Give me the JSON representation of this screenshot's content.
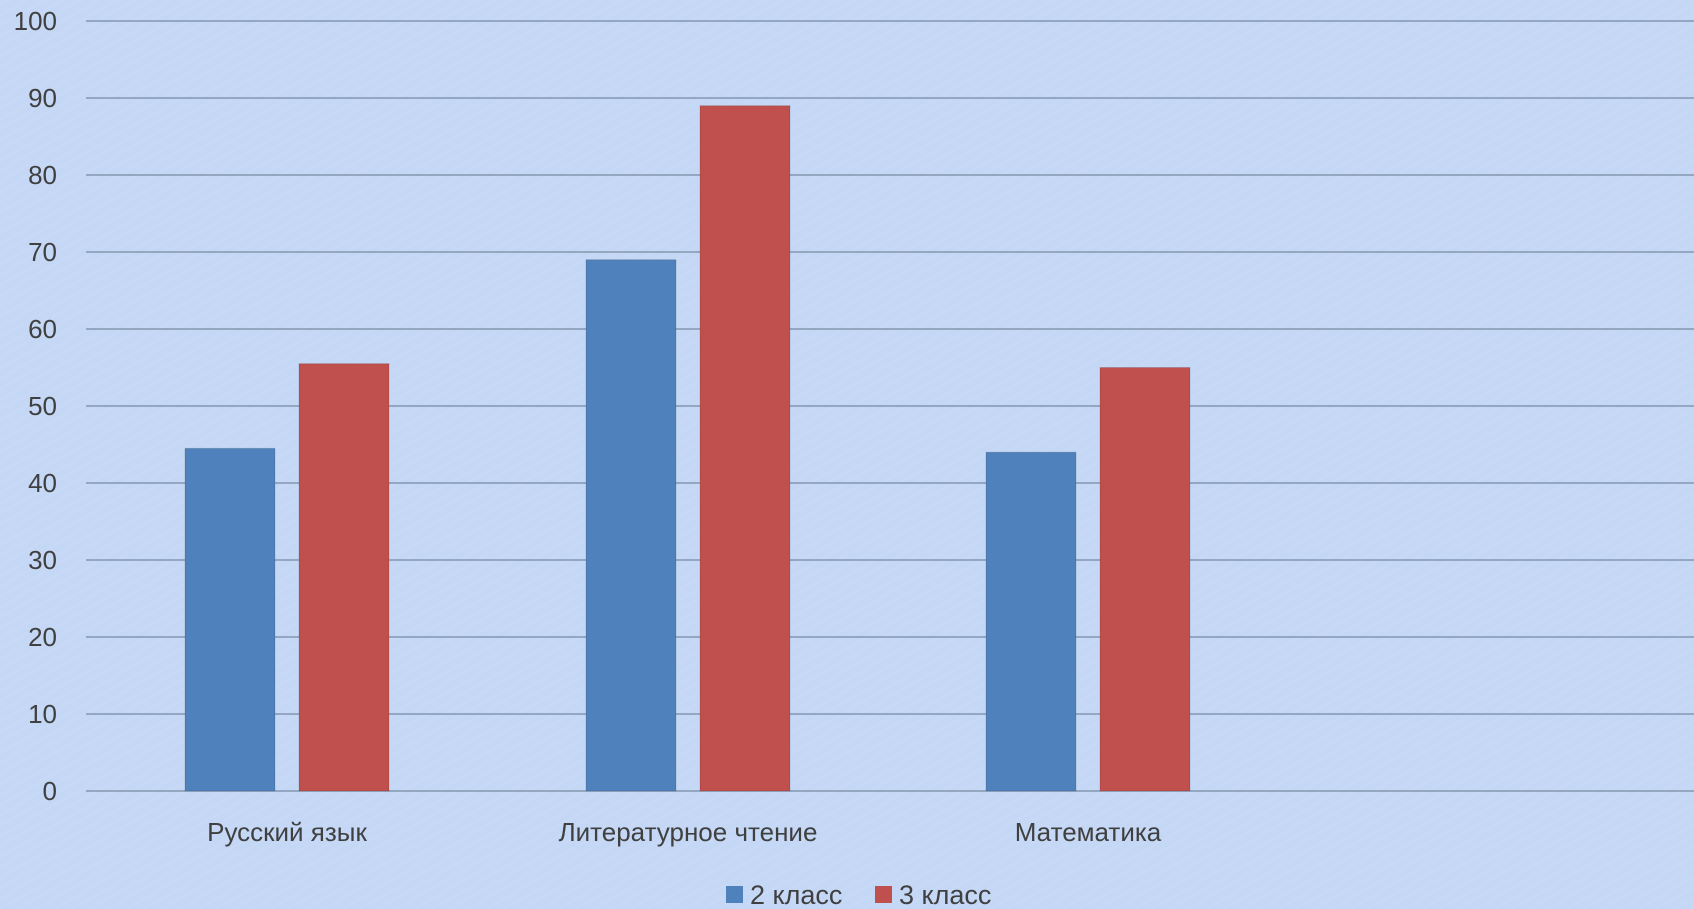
{
  "chart_data": {
    "type": "bar",
    "title": "",
    "xlabel": "",
    "ylabel": "",
    "ylim": [
      0,
      100
    ],
    "yticks": [
      0,
      10,
      20,
      30,
      40,
      50,
      60,
      70,
      80,
      90,
      100
    ],
    "grid": true,
    "legend_position": "bottom",
    "categories": [
      "Русский язык",
      "Литературное чтение",
      "Математика"
    ],
    "series": [
      {
        "name": "2 класс",
        "color": "#4f81bd",
        "values": [
          44.5,
          69,
          44
        ]
      },
      {
        "name": "3 класс",
        "color": "#c0504d",
        "values": [
          55.5,
          89,
          55
        ]
      }
    ]
  },
  "colors": {
    "background": "#c4d7f5",
    "gridline": "#8497b0",
    "text": "#404040"
  }
}
